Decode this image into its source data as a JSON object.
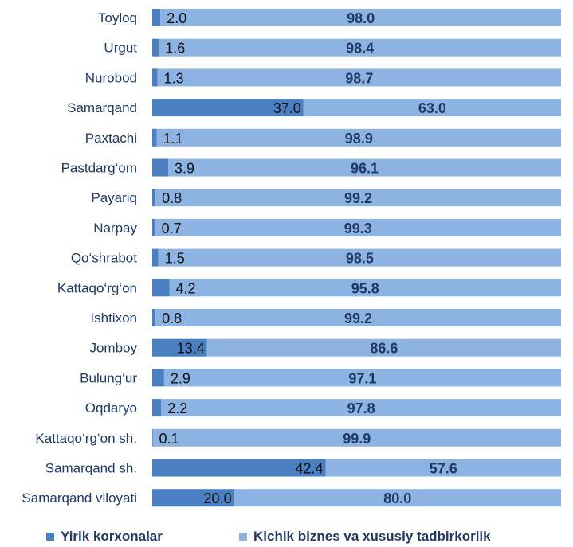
{
  "chart_data": {
    "type": "bar",
    "orientation": "horizontal",
    "stacked": "100%",
    "categories": [
      "Toyloq",
      "Urgut",
      "Nurobod",
      "Samarqand",
      "Paxtachi",
      "Pastdarg‘om",
      "Payariq",
      "Narpay",
      "Qo‘shrabot",
      "Kattaqo‘rg‘on",
      "Ishtixon",
      "Jomboy",
      "Bulung‘ur",
      "Oqdaryo",
      "Kattaqo‘rg‘on  sh.",
      "Samarqand sh.",
      "Samarqand viloyati"
    ],
    "series": [
      {
        "name": "Yirik korxonalar",
        "values": [
          2.0,
          1.6,
          1.3,
          37.0,
          1.1,
          3.9,
          0.8,
          0.7,
          1.5,
          4.2,
          0.8,
          13.4,
          2.9,
          2.2,
          0.1,
          42.4,
          20.0
        ],
        "color": "#4a7fc1"
      },
      {
        "name": "Kichik biznes va xususiy tadbirkorlik",
        "values": [
          98.0,
          98.4,
          98.7,
          63.0,
          98.9,
          96.1,
          99.2,
          99.3,
          98.5,
          95.8,
          99.2,
          86.6,
          97.1,
          97.8,
          99.9,
          57.6,
          80.0
        ],
        "color": "#8db3e2"
      }
    ],
    "value_labels": {
      "series_1_text_color": "#111111",
      "series_2_text_color": "#1f3864"
    },
    "legend_position": "bottom",
    "grid": false,
    "xlim": [
      0,
      100
    ]
  }
}
